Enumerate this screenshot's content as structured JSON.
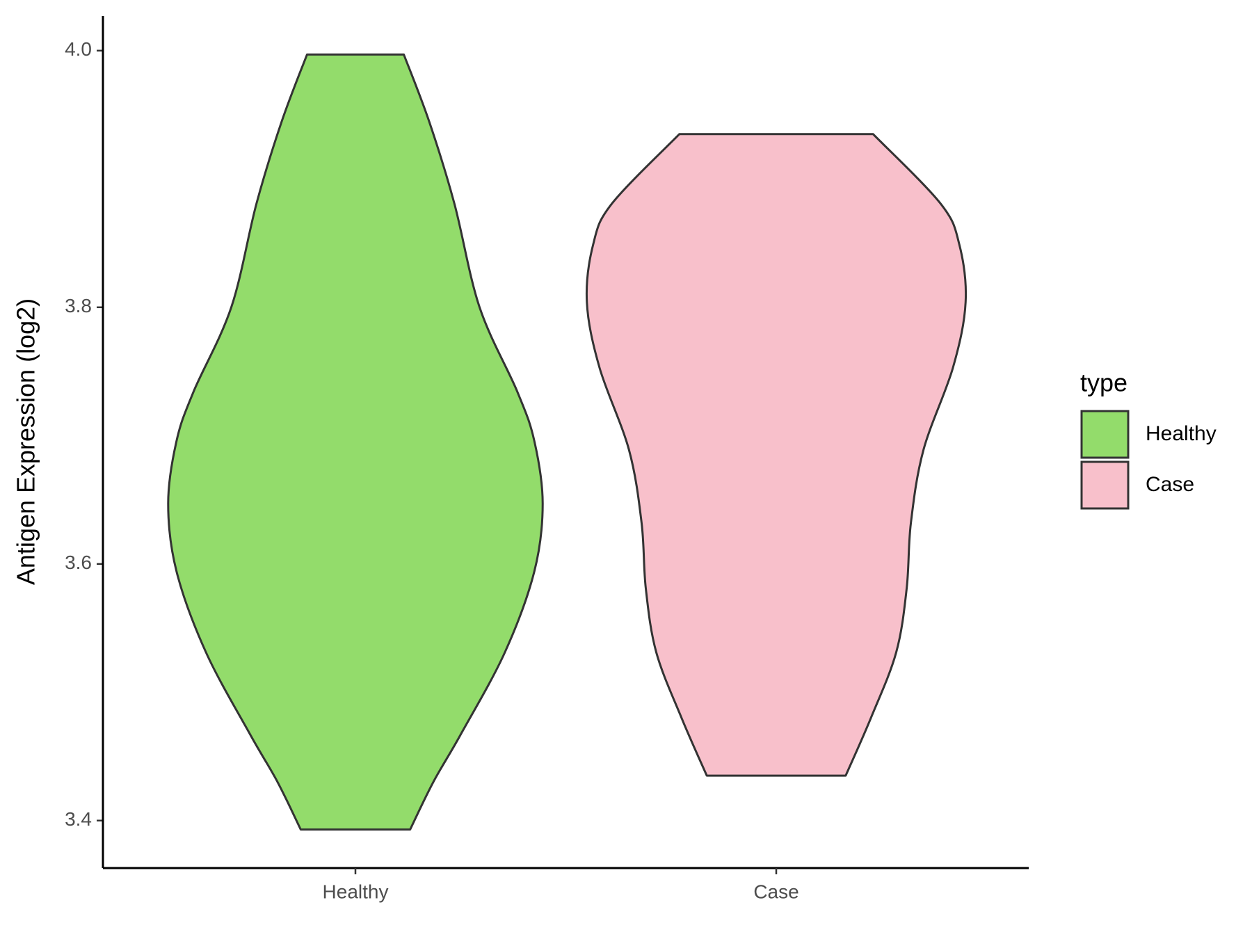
{
  "chart_data": {
    "type": "violin",
    "y_label": "Antigen Expression (log2)",
    "categories": [
      "Healthy",
      "Case"
    ],
    "legend_title": "type",
    "legend_position": "right",
    "ylim": [
      3.363,
      4.027
    ],
    "yticks": [
      3.4,
      3.6,
      3.8,
      {
        "value": 4,
        "label": "4.0"
      }
    ],
    "series": [
      {
        "name": "Healthy",
        "color": "#93dc6b",
        "y": [
          3.997,
          3.945,
          3.881,
          3.8,
          3.734,
          3.696,
          3.647,
          3.594,
          3.531,
          3.467,
          3.43,
          3.393
        ],
        "widths": [
          0.23,
          0.35,
          0.47,
          0.59,
          0.77,
          0.85,
          0.89,
          0.85,
          0.71,
          0.5,
          0.37,
          0.26
        ]
      },
      {
        "name": "Case",
        "color": "#f8c0cb",
        "y": [
          3.935,
          3.881,
          3.849,
          3.804,
          3.753,
          3.689,
          3.632,
          3.581,
          3.531,
          3.48,
          3.435
        ],
        "widths": [
          0.46,
          0.78,
          0.87,
          0.9,
          0.84,
          0.7,
          0.64,
          0.62,
          0.57,
          0.45,
          0.33
        ]
      }
    ]
  }
}
